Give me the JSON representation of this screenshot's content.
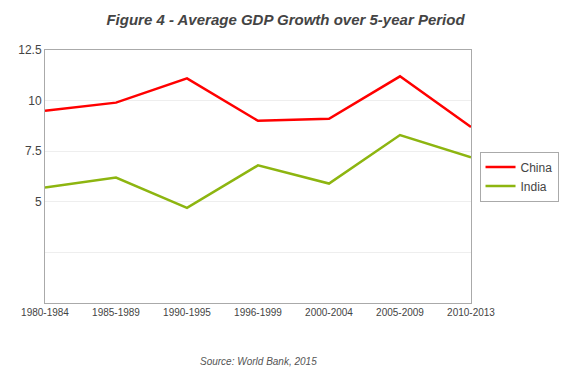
{
  "chart_data": {
    "type": "line",
    "title": "Figure 4 - Average GDP Growth over 5-year Period",
    "categories": [
      "1980-1984",
      "1985-1989",
      "1990-1995",
      "1996-1999",
      "2000-2004",
      "2005-2009",
      "2010-2013"
    ],
    "series": [
      {
        "name": "China",
        "color": "#FF0000",
        "values": [
          9.5,
          9.9,
          11.1,
          9.0,
          9.1,
          11.2,
          8.7
        ]
      },
      {
        "name": "India",
        "color": "#8DB510",
        "values": [
          5.7,
          6.2,
          4.7,
          6.8,
          5.9,
          8.3,
          7.2
        ]
      }
    ],
    "ylim": [
      0,
      12.5
    ],
    "yticks": [
      {
        "value": 0,
        "label": null
      },
      {
        "value": 2.5,
        "label": null
      },
      5,
      7.5,
      10,
      12.5
    ],
    "grid": true,
    "legend": "right",
    "annotation": "Source: World Bank, 2015"
  }
}
